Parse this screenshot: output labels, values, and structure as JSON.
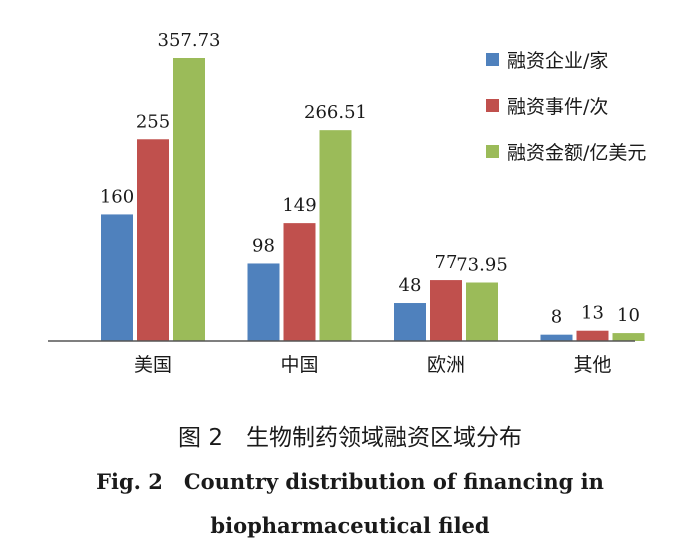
{
  "colors": {
    "series1": "#4f81bd",
    "series2": "#c0504d",
    "series3": "#9bbb59",
    "axis": "#555555"
  },
  "chart_data": {
    "type": "bar",
    "categories": [
      "美国",
      "中国",
      "欧洲",
      "其他"
    ],
    "series": [
      {
        "name": "融资企业/家",
        "values": [
          160,
          98,
          48,
          8
        ],
        "labels": [
          "160",
          "98",
          "48",
          "8"
        ]
      },
      {
        "name": "融资事件/次",
        "values": [
          255,
          149,
          77,
          13
        ],
        "labels": [
          "255",
          "149",
          "77",
          "13"
        ]
      },
      {
        "name": "融资金额/亿美元",
        "values": [
          357.73,
          266.51,
          73.95,
          10
        ],
        "labels": [
          "357.73",
          "266.51",
          "73.95",
          "10"
        ]
      }
    ],
    "ylim": [
      0,
      357.73
    ],
    "grid": false,
    "legend_position": "top-right"
  },
  "caption": {
    "cn": "图 2　生物制药领域融资区域分布",
    "en_line1": "Fig. 2　Country distribution of financing in",
    "en_line2": "biopharmaceutical filed"
  }
}
